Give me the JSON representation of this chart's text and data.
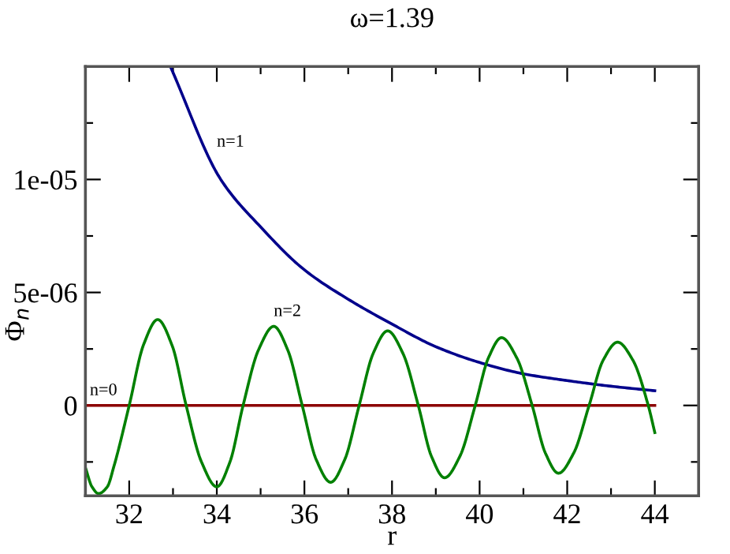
{
  "chart_data": {
    "type": "line",
    "title": "ω=1.39",
    "xlabel": "r",
    "ylabel": "Φ$_{n}$",
    "xlim": [
      31,
      45
    ],
    "ylim": [
      -4e-06,
      1.5e-05
    ],
    "xticks": [
      {
        "value": 31,
        "label": null
      },
      32,
      {
        "value": 33,
        "label": null
      },
      34,
      {
        "value": 35,
        "label": null
      },
      36,
      {
        "value": 37,
        "label": null
      },
      38,
      {
        "value": 39,
        "label": null
      },
      40,
      {
        "value": 41,
        "label": null
      },
      42,
      {
        "value": 43,
        "label": null
      },
      44,
      {
        "value": 45,
        "label": null
      }
    ],
    "yticks": [
      {
        "value": -2.5e-06,
        "label": null
      },
      0,
      {
        "value": 2.5e-06,
        "label": null
      },
      5e-06,
      {
        "value": 7.5e-06,
        "label": null
      },
      1e-05,
      {
        "value": 1.25e-05,
        "label": null
      }
    ],
    "grid": false,
    "legend": false,
    "line_style": "solid",
    "marker": "none",
    "series": [
      {
        "color": "#8b0000",
        "x": [
          31,
          44
        ],
        "values": [
          0,
          0
        ]
      },
      {
        "color": "#00008b",
        "x": [
          32.94,
          34.09,
          35,
          36,
          37,
          38,
          39,
          40,
          41,
          42,
          43,
          44
        ],
        "values": [
          1.5e-05,
          1e-05,
          7.9e-06,
          6e-06,
          4.7e-06,
          3.6e-06,
          2.6e-06,
          1.9e-06,
          1.4e-06,
          1.1e-06,
          8.5e-07,
          6.5e-07
        ]
      },
      {
        "color": "#008000",
        "x": [
          31.0,
          31.15,
          31.3,
          31.5,
          31.65,
          32.0,
          32.33,
          32.65,
          32.98,
          33.3,
          33.65,
          34.0,
          34.3,
          34.6,
          34.95,
          35.3,
          35.62,
          35.95,
          36.27,
          36.6,
          36.92,
          37.25,
          37.57,
          37.9,
          38.25,
          38.6,
          38.9,
          39.2,
          39.55,
          39.9,
          40.2,
          40.5,
          40.85,
          41.2,
          41.5,
          41.8,
          42.15,
          42.5,
          42.82,
          43.15,
          43.5,
          43.85,
          44.0
        ],
        "values": [
          -2.75e-06,
          -3.6e-06,
          -3.9e-06,
          -3.6e-06,
          -2.7e-06,
          0,
          2.7e-06,
          3.8e-06,
          2.65e-06,
          0,
          -2.5e-06,
          -3.6e-06,
          -2.5e-06,
          0,
          2.45e-06,
          3.5e-06,
          2.45e-06,
          0,
          -2.4e-06,
          -3.4e-06,
          -2.4e-06,
          0,
          2.3e-06,
          3.3e-06,
          2.3e-06,
          0,
          -2.25e-06,
          -3.2e-06,
          -2.25e-06,
          0,
          2.1e-06,
          3e-06,
          2.1e-06,
          0,
          -2.1e-06,
          -3e-06,
          -2.1e-06,
          0,
          2e-06,
          2.8e-06,
          2e-06,
          0,
          -1.2e-06
        ]
      }
    ],
    "annotations": [
      {
        "text": "n=0",
        "x": 31.1,
        "y": 0
      },
      {
        "text": "n=1",
        "x": 34.0,
        "y": 1.1e-05
      },
      {
        "text": "n=2",
        "x": 35.3,
        "y": 3.5e-06
      }
    ]
  }
}
